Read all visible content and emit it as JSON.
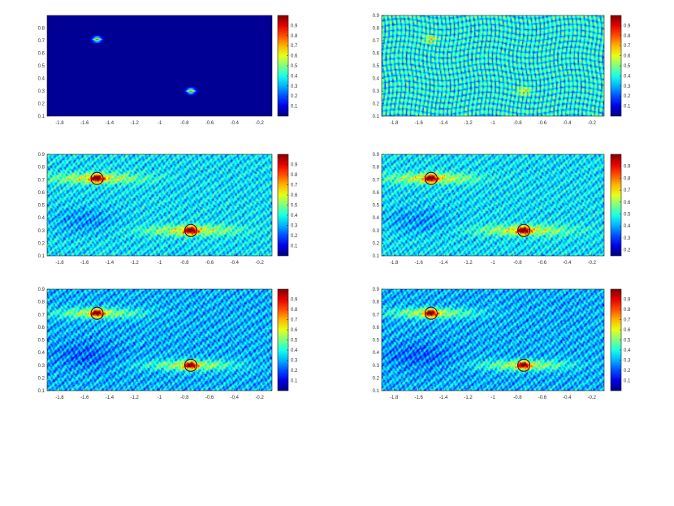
{
  "chart_data": [
    {
      "type": "heatmap",
      "xlim": [
        -1.9,
        -0.1
      ],
      "ylim": [
        0.1,
        0.9
      ],
      "xticks": [
        "-1.8",
        "-1.6",
        "-1.4",
        "-1.2",
        "-1",
        "-0.8",
        "-0.6",
        "-0.4",
        "-0.2"
      ],
      "yticks": [
        "0.1",
        "0.2",
        "0.3",
        "0.4",
        "0.5",
        "0.6",
        "0.7",
        "0.8"
      ],
      "colorbar": {
        "range": [
          0,
          1
        ],
        "ticks": [
          "0.1",
          "0.2",
          "0.3",
          "0.4",
          "0.5",
          "0.6",
          "0.7",
          "0.8",
          "0.9"
        ]
      },
      "targets": [
        {
          "x": -1.5,
          "y": 0.71
        },
        {
          "x": -0.75,
          "y": 0.3
        }
      ],
      "background_level": 0.02,
      "pattern": "clean",
      "target_markers": false,
      "grid": false,
      "colormap": "jet"
    },
    {
      "type": "heatmap",
      "xlim": [
        -1.9,
        -0.1
      ],
      "ylim": [
        0.1,
        0.9
      ],
      "xticks": [
        "-1.8",
        "-1.6",
        "-1.4",
        "-1.2",
        "-1",
        "-0.8",
        "-0.6",
        "-0.4",
        "-0.2"
      ],
      "yticks": [
        "0.1",
        "0.2",
        "0.3",
        "0.4",
        "0.5",
        "0.6",
        "0.7",
        "0.8",
        "0.9"
      ],
      "colorbar": {
        "range": [
          0,
          1
        ],
        "ticks": [
          "0.1",
          "0.2",
          "0.3",
          "0.4",
          "0.5",
          "0.6",
          "0.7",
          "0.8",
          "0.9"
        ]
      },
      "targets": [
        {
          "x": -1.5,
          "y": 0.71
        },
        {
          "x": -0.75,
          "y": 0.3
        }
      ],
      "background_level": 0.2,
      "pattern": "lattice",
      "target_markers": false,
      "grid": false,
      "colormap": "jet"
    },
    {
      "type": "heatmap",
      "xlim": [
        -1.9,
        -0.1
      ],
      "ylim": [
        0.1,
        0.9
      ],
      "xticks": [
        "-1.8",
        "-1.6",
        "-1.4",
        "-1.2",
        "-1",
        "-0.8",
        "-0.6",
        "-0.4",
        "-0.2"
      ],
      "yticks": [
        "0.1",
        "0.2",
        "0.3",
        "0.4",
        "0.5",
        "0.6",
        "0.7",
        "0.8",
        "0.9"
      ],
      "colorbar": {
        "range": [
          0,
          1
        ],
        "ticks": [
          "0.1",
          "0.2",
          "0.3",
          "0.4",
          "0.5",
          "0.6",
          "0.7",
          "0.8",
          "0.9"
        ]
      },
      "targets": [
        {
          "x": -1.5,
          "y": 0.71
        },
        {
          "x": -0.75,
          "y": 0.3
        }
      ],
      "background_level": 0.35,
      "pattern": "speckle",
      "target_markers": true,
      "grid": false,
      "colormap": "jet"
    },
    {
      "type": "heatmap",
      "xlim": [
        -1.9,
        -0.1
      ],
      "ylim": [
        0.1,
        0.9
      ],
      "xticks": [
        "-1.8",
        "-1.6",
        "-1.4",
        "-1.2",
        "-1",
        "-0.8",
        "-0.6",
        "-0.4",
        "-0.2"
      ],
      "yticks": [
        "0.1",
        "0.2",
        "0.3",
        "0.4",
        "0.5",
        "0.6",
        "0.7",
        "0.8",
        "0.9"
      ],
      "colorbar": {
        "range": [
          0.15,
          1
        ],
        "ticks": [
          "0.2",
          "0.3",
          "0.4",
          "0.5",
          "0.6",
          "0.7",
          "0.8",
          "0.9"
        ]
      },
      "targets": [
        {
          "x": -1.5,
          "y": 0.71
        },
        {
          "x": -0.75,
          "y": 0.3
        }
      ],
      "background_level": 0.35,
      "pattern": "speckle",
      "target_markers": true,
      "grid": false,
      "colormap": "jet"
    },
    {
      "type": "heatmap",
      "xlim": [
        -1.9,
        -0.1
      ],
      "ylim": [
        0.1,
        0.9
      ],
      "xticks": [
        "-1.8",
        "-1.6",
        "-1.4",
        "-1.2",
        "-1",
        "-0.8",
        "-0.6",
        "-0.4",
        "-0.2"
      ],
      "yticks": [
        "0.1",
        "0.2",
        "0.3",
        "0.4",
        "0.5",
        "0.6",
        "0.7",
        "0.8",
        "0.9"
      ],
      "colorbar": {
        "range": [
          0,
          1
        ],
        "ticks": [
          "0.1",
          "0.2",
          "0.3",
          "0.4",
          "0.5",
          "0.6",
          "0.7",
          "0.8",
          "0.9"
        ]
      },
      "targets": [
        {
          "x": -1.5,
          "y": 0.71
        },
        {
          "x": -0.75,
          "y": 0.3
        }
      ],
      "background_level": 0.3,
      "pattern": "speckle",
      "target_markers": true,
      "grid": false,
      "colormap": "jet"
    },
    {
      "type": "heatmap",
      "xlim": [
        -1.9,
        -0.1
      ],
      "ylim": [
        0.1,
        0.9
      ],
      "xticks": [
        "-1.8",
        "-1.6",
        "-1.4",
        "-1.2",
        "-1",
        "-0.8",
        "-0.6",
        "-0.4",
        "-0.2"
      ],
      "yticks": [
        "0.1",
        "0.2",
        "0.3",
        "0.4",
        "0.5",
        "0.6",
        "0.7",
        "0.8",
        "0.9"
      ],
      "colorbar": {
        "range": [
          0,
          1
        ],
        "ticks": [
          "0.1",
          "0.2",
          "0.3",
          "0.4",
          "0.5",
          "0.6",
          "0.7",
          "0.8",
          "0.9"
        ]
      },
      "targets": [
        {
          "x": -1.5,
          "y": 0.71
        },
        {
          "x": -0.75,
          "y": 0.3
        }
      ],
      "background_level": 0.3,
      "pattern": "speckle",
      "target_markers": true,
      "grid": false,
      "colormap": "jet"
    }
  ]
}
